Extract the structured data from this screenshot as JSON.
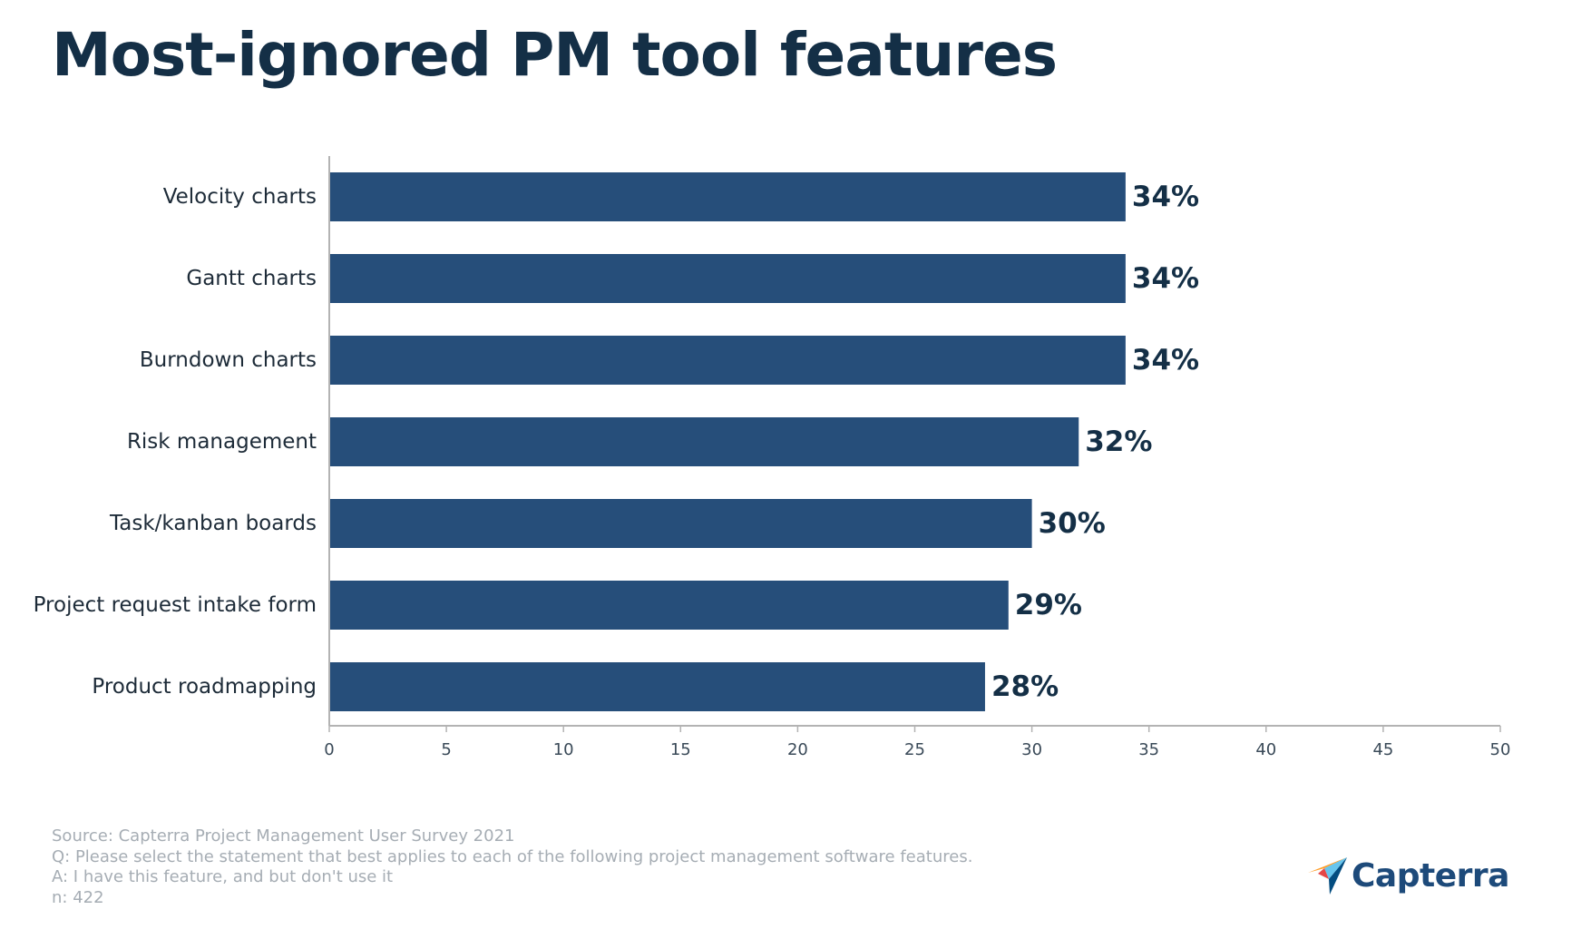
{
  "chart_data": {
    "type": "bar",
    "orientation": "horizontal",
    "title": "Most-ignored PM tool features",
    "categories": [
      "Velocity charts",
      "Gantt charts",
      "Burndown charts",
      "Risk management",
      "Task/kanban boards",
      "Project request intake form",
      "Product roadmapping"
    ],
    "values": [
      34,
      34,
      34,
      32,
      30,
      29,
      28
    ],
    "value_labels": [
      "34%",
      "34%",
      "34%",
      "32%",
      "30%",
      "29%",
      "28%"
    ],
    "xlim": [
      0,
      50
    ],
    "xticks": [
      0,
      5,
      10,
      15,
      20,
      25,
      30,
      35,
      40,
      45,
      50
    ],
    "xlabel": "",
    "ylabel": "",
    "grid": false,
    "bar_color": "#264e7a"
  },
  "footer": {
    "source": "Source: Capterra Project Management User Survey 2021",
    "question": "Q: Please select the statement that best applies to each of the following project management software features.",
    "answer": "A: I have this feature, and but don't use it",
    "n": "n: 422"
  },
  "logo": {
    "name": "Capterra",
    "icon": "capterra-logo-icon",
    "colors": [
      "#ff9d28",
      "#68c5ed",
      "#044d80",
      "#e54747"
    ]
  }
}
